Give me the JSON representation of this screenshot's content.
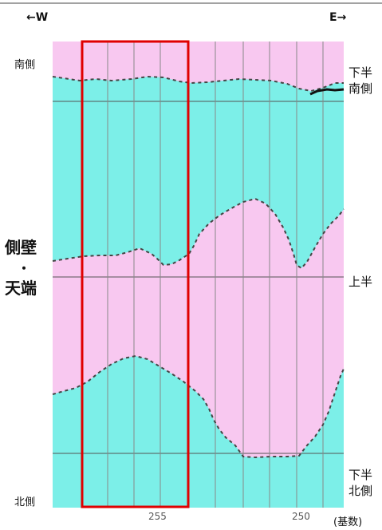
{
  "direction": {
    "west": "←W",
    "east": "E→"
  },
  "side_labels": {
    "south": "南側",
    "north": "北側",
    "wall_top_line1": "側壁",
    "wall_top_dot": "・",
    "wall_top_line2": "天端"
  },
  "right_labels": {
    "lower_south_line1": "下半",
    "lower_south_line2": "南側",
    "upper": "上半",
    "lower_north_line1": "下半",
    "lower_north_line2": "北側"
  },
  "axis": {
    "tick_255": "255",
    "tick_250": "250",
    "unit": "(基数)"
  },
  "colors": {
    "pink": "#f8c8f0",
    "cyan": "#7cefe8",
    "highlight_box": "#e00000",
    "grid_line": "#555555"
  }
}
